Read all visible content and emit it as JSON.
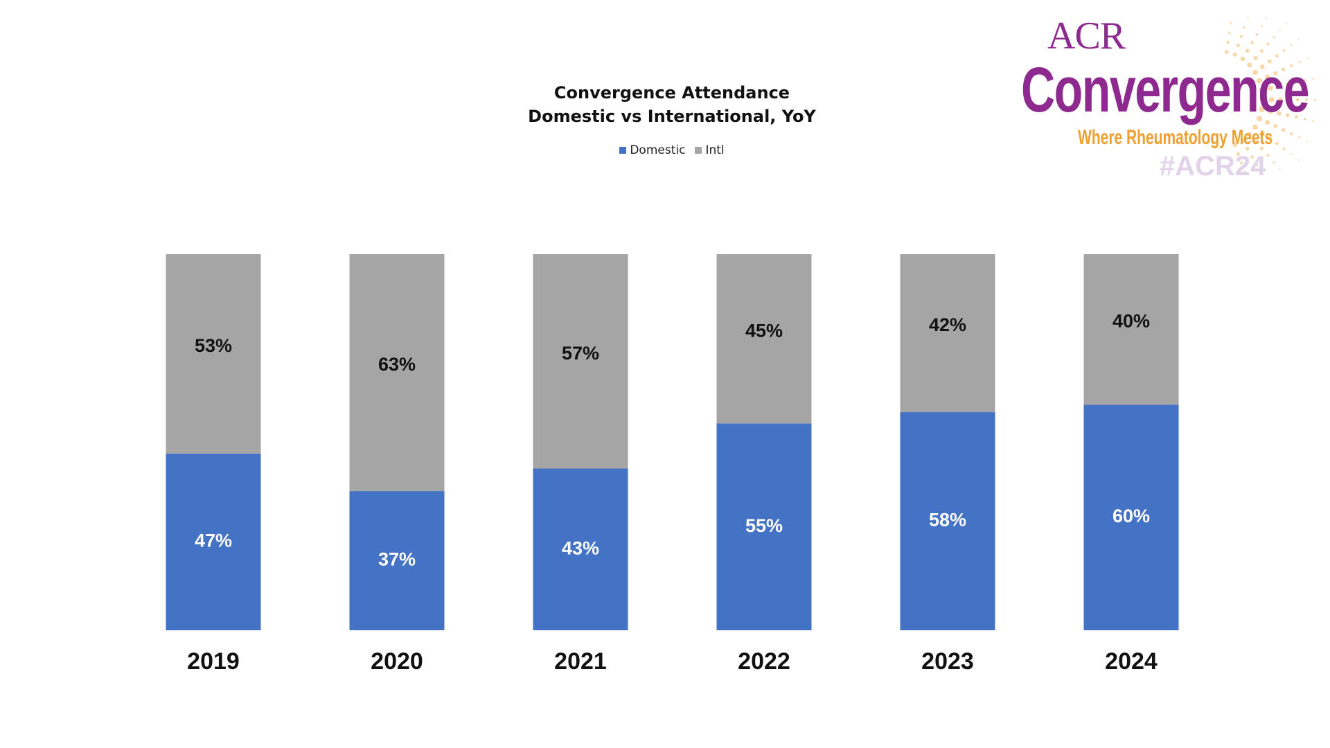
{
  "logo": {
    "line1": "ACR",
    "line2": "Convergence",
    "tagline": "Where Rheumatology Meets",
    "hashtag": "#ACR24"
  },
  "chart_data": {
    "type": "bar",
    "stacked": true,
    "title": "Convergence Attendance",
    "subtitle": "Domestic vs International, YoY",
    "legend_position": "top-center",
    "categories": [
      "2019",
      "2020",
      "2021",
      "2022",
      "2023",
      "2024"
    ],
    "series": [
      {
        "name": "Domestic",
        "color": "#4472c4",
        "values": [
          47,
          37,
          43,
          55,
          58,
          60
        ],
        "labels": [
          "47%",
          "37%",
          "43%",
          "55%",
          "58%",
          "60%"
        ]
      },
      {
        "name": "Intl",
        "color": "#a5a5a5",
        "values": [
          53,
          63,
          57,
          45,
          42,
          40
        ],
        "labels": [
          "53%",
          "63%",
          "57%",
          "45%",
          "42%",
          "40%"
        ]
      }
    ],
    "ylim": [
      0,
      100
    ],
    "grid": false
  }
}
